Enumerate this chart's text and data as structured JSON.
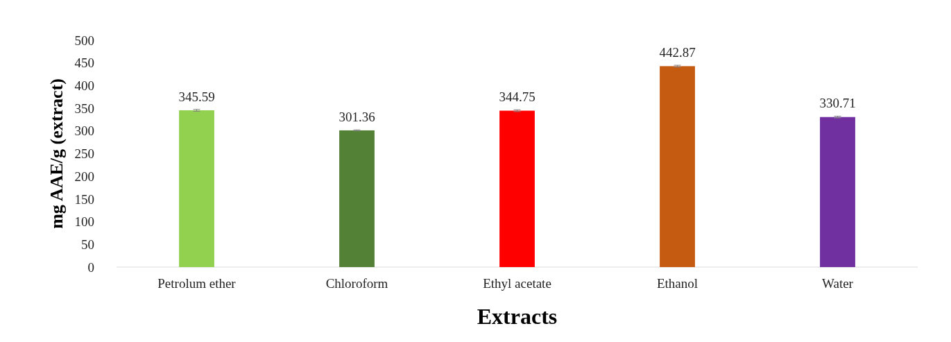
{
  "chart_data": {
    "type": "bar",
    "xlabel": "Extracts",
    "ylabel": "mg AAE/g (extract)",
    "categories": [
      "Petrolum ether",
      "Chloroform",
      "Ethyl acetate",
      "Ethanol",
      "Water"
    ],
    "values": [
      345.59,
      301.36,
      344.75,
      442.87,
      330.71
    ],
    "colors": [
      "#92d050",
      "#538135",
      "#ff0000",
      "#c55a11",
      "#7030a0"
    ],
    "errors": [
      2,
      1,
      2,
      2,
      2
    ],
    "ylim": [
      0,
      500
    ],
    "yticks": [
      0,
      50,
      100,
      150,
      200,
      250,
      300,
      350,
      400,
      450,
      500
    ],
    "grid": false,
    "data_labels": true
  }
}
